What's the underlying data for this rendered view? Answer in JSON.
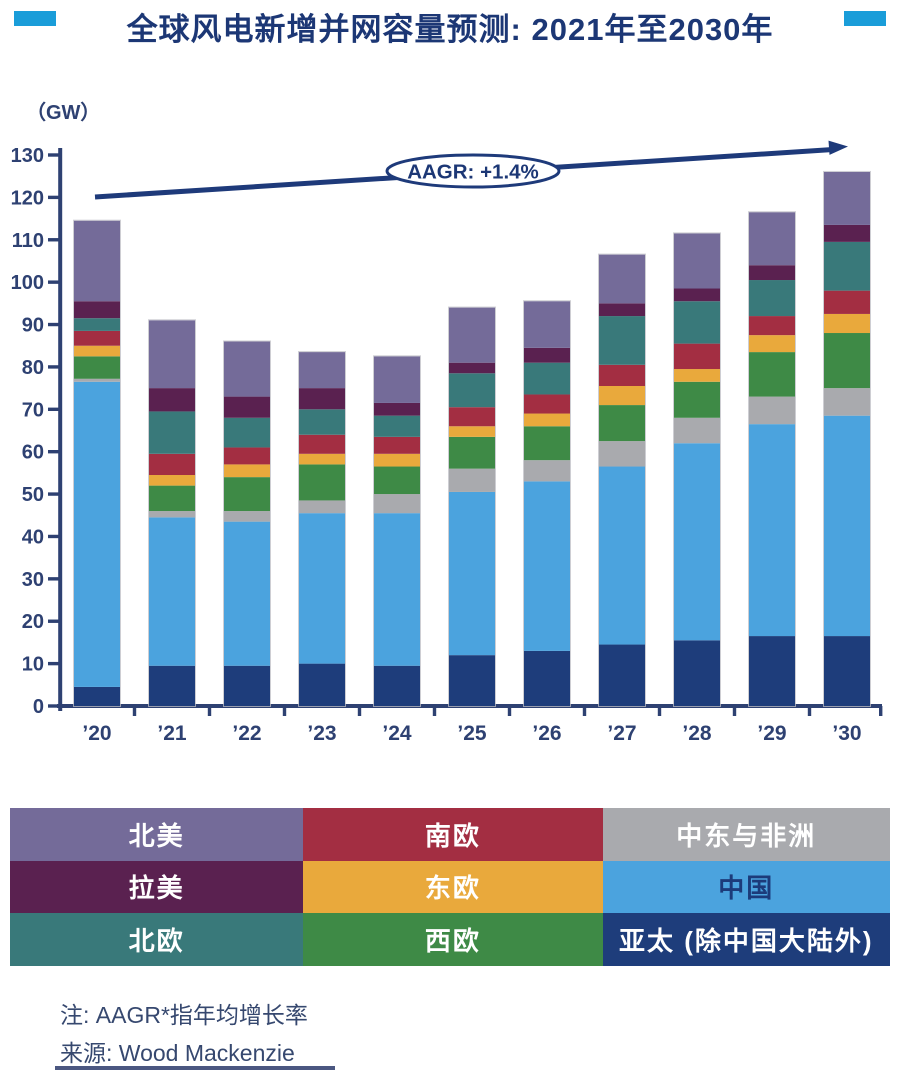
{
  "header": {
    "title": "全球风电新增并网容量预测: 2021年至2030年",
    "accent_color": "#1a9dd9",
    "title_color": "#1c3775"
  },
  "chart_data": {
    "type": "bar",
    "stacked": true,
    "title": "全球风电新增并网容量预测: 2021年至2030年",
    "unit_label": "（GW）",
    "xlabel": "",
    "ylabel": "GW",
    "categories": [
      "’20",
      "’21",
      "’22",
      "’23",
      "’24",
      "’25",
      "’26",
      "’27",
      "’28",
      "’29",
      "’30"
    ],
    "ylim": [
      0,
      130
    ],
    "ytick_step": 10,
    "grid": false,
    "legend_position": "bottom",
    "annotation": {
      "type": "trend-arrow",
      "text": "AAGR: +1.4%"
    },
    "axis_color": "#2e4172",
    "series": [
      {
        "id": "apac-ex-china",
        "label": "亚太 (除中国大陆外)",
        "color": "#1e3d7b",
        "values": [
          4.5,
          9.5,
          9.5,
          10,
          9.5,
          12,
          13,
          14.5,
          15.5,
          16.5,
          16.5
        ]
      },
      {
        "id": "china",
        "label": "中国",
        "color": "#4ba3de",
        "values": [
          72,
          35,
          34,
          35.5,
          36,
          38.5,
          40,
          42,
          46.5,
          50,
          52
        ]
      },
      {
        "id": "middle-east-africa",
        "label": "中东与非洲",
        "color": "#a9aaae",
        "values": [
          0.7,
          1.5,
          2.5,
          3,
          4.5,
          5.5,
          5,
          6,
          6,
          6.5,
          6.5
        ]
      },
      {
        "id": "western-europe",
        "label": "西欧",
        "color": "#3e8a46",
        "values": [
          5.3,
          6,
          8,
          8.5,
          6.5,
          7.5,
          8,
          8.5,
          8.5,
          10.5,
          13
        ]
      },
      {
        "id": "eastern-europe",
        "label": "东欧",
        "color": "#e9a93c",
        "values": [
          2.5,
          2.5,
          3,
          2.5,
          3,
          2.5,
          3,
          4.5,
          3,
          4,
          4.5
        ]
      },
      {
        "id": "southern-europe",
        "label": "南欧",
        "color": "#a32e42",
        "values": [
          3.5,
          5,
          4,
          4.5,
          4,
          4.5,
          4.5,
          5,
          6,
          4.5,
          5.5
        ]
      },
      {
        "id": "northern-europe",
        "label": "北欧",
        "color": "#39797a",
        "values": [
          3,
          10,
          7,
          6,
          5,
          8,
          7.5,
          11.5,
          10,
          8.5,
          11.5
        ]
      },
      {
        "id": "latin-america",
        "label": "拉美",
        "color": "#5a2150",
        "values": [
          4,
          5.5,
          5,
          5,
          3,
          2.5,
          3.5,
          3,
          3,
          3.5,
          4
        ]
      },
      {
        "id": "north-america",
        "label": "北美",
        "color": "#746b99",
        "values": [
          19,
          16,
          13,
          8.5,
          11,
          13,
          11,
          11.5,
          13,
          12.5,
          12.5
        ]
      }
    ]
  },
  "legend": {
    "items": [
      {
        "id": "north-america",
        "label": "北美",
        "color": "#746b99",
        "text_color": "#ffffff"
      },
      {
        "id": "southern-europe",
        "label": "南欧",
        "color": "#a32e42",
        "text_color": "#ffffff"
      },
      {
        "id": "middle-east-africa",
        "label": "中东与非洲",
        "color": "#a9aaae",
        "text_color": "#ffffff"
      },
      {
        "id": "latin-america",
        "label": "拉美",
        "color": "#5a2150",
        "text_color": "#ffffff"
      },
      {
        "id": "eastern-europe",
        "label": "东欧",
        "color": "#e9a93c",
        "text_color": "#ffffff"
      },
      {
        "id": "china",
        "label": "中国",
        "color": "#4ba3de",
        "text_color": "#1c3b7a"
      },
      {
        "id": "northern-europe",
        "label": "北欧",
        "color": "#39797a",
        "text_color": "#ffffff"
      },
      {
        "id": "western-europe",
        "label": "西欧",
        "color": "#3e8a46",
        "text_color": "#ffffff"
      },
      {
        "id": "apac-ex-china",
        "label": "亚太 (除中国大陆外)",
        "color": "#1e3d7b",
        "text_color": "#ffffff"
      }
    ]
  },
  "notes": {
    "line1": "注: AAGR*指年均增长率",
    "line2": "来源: Wood Mackenzie"
  }
}
